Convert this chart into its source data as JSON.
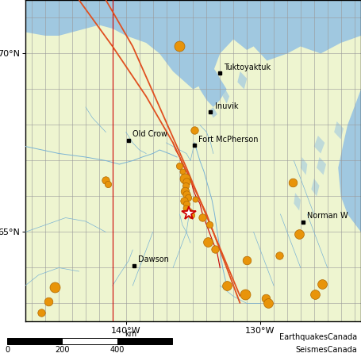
{
  "bg_land": "#eef5d0",
  "bg_water_outer": "#b8d8ea",
  "bg_water_sea": "#a0c8e0",
  "lon_min": -147.5,
  "lon_max": -122.5,
  "lat_min": 62.5,
  "lat_max": 71.5,
  "gridlines_color": "#999999",
  "gridlines_lw": 0.5,
  "river_color": "#7ab3d4",
  "fault_color1": "#e05020",
  "fault_color2": "#e05020",
  "border_color": "#cc0000",
  "eq_color": "#e8940a",
  "eq_edge": "#b06800",
  "star_edge": "#cc0000",
  "label_fontsize": 7,
  "cities": [
    {
      "name": "Tuktoyaktuk",
      "lon": -133.0,
      "lat": 69.45
    },
    {
      "name": "Inuvik",
      "lon": -133.7,
      "lat": 68.36
    },
    {
      "name": "Old Crow",
      "lon": -139.8,
      "lat": 67.57
    },
    {
      "name": "Fort McPherson",
      "lon": -134.9,
      "lat": 67.43
    },
    {
      "name": "Dawson",
      "lon": -139.4,
      "lat": 64.06
    },
    {
      "name": "Norman W",
      "lon": -126.8,
      "lat": 65.28
    }
  ],
  "earthquakes": [
    {
      "lon": -136.0,
      "lat": 70.2,
      "size": 11
    },
    {
      "lon": -134.9,
      "lat": 67.85,
      "size": 8
    },
    {
      "lon": -136.0,
      "lat": 66.85,
      "size": 7
    },
    {
      "lon": -135.8,
      "lat": 66.7,
      "size": 6
    },
    {
      "lon": -135.6,
      "lat": 66.5,
      "size": 11
    },
    {
      "lon": -135.5,
      "lat": 66.4,
      "size": 8
    },
    {
      "lon": -135.55,
      "lat": 66.3,
      "size": 7
    },
    {
      "lon": -135.6,
      "lat": 66.15,
      "size": 9
    },
    {
      "lon": -135.5,
      "lat": 66.05,
      "size": 8
    },
    {
      "lon": -135.4,
      "lat": 65.97,
      "size": 7
    },
    {
      "lon": -135.65,
      "lat": 65.88,
      "size": 8
    },
    {
      "lon": -135.5,
      "lat": 65.78,
      "size": 7
    },
    {
      "lon": -135.55,
      "lat": 65.67,
      "size": 6
    },
    {
      "lon": -135.3,
      "lat": 65.57,
      "size": 8
    },
    {
      "lon": -135.15,
      "lat": 65.48,
      "size": 7
    },
    {
      "lon": -134.85,
      "lat": 65.92,
      "size": 6
    },
    {
      "lon": -134.3,
      "lat": 65.42,
      "size": 8
    },
    {
      "lon": -133.8,
      "lat": 65.22,
      "size": 7
    },
    {
      "lon": -133.9,
      "lat": 64.72,
      "size": 10
    },
    {
      "lon": -133.4,
      "lat": 64.52,
      "size": 8
    },
    {
      "lon": -141.5,
      "lat": 66.45,
      "size": 8
    },
    {
      "lon": -141.35,
      "lat": 66.35,
      "size": 7
    },
    {
      "lon": -127.6,
      "lat": 66.38,
      "size": 9
    },
    {
      "lon": -127.1,
      "lat": 64.95,
      "size": 10
    },
    {
      "lon": -128.6,
      "lat": 64.35,
      "size": 8
    },
    {
      "lon": -131.0,
      "lat": 64.22,
      "size": 9
    },
    {
      "lon": -132.5,
      "lat": 63.5,
      "size": 10
    },
    {
      "lon": -131.1,
      "lat": 63.25,
      "size": 11
    },
    {
      "lon": -129.6,
      "lat": 63.15,
      "size": 9
    },
    {
      "lon": -129.4,
      "lat": 63.0,
      "size": 10
    },
    {
      "lon": -145.3,
      "lat": 63.45,
      "size": 11
    },
    {
      "lon": -145.8,
      "lat": 63.05,
      "size": 9
    },
    {
      "lon": -146.3,
      "lat": 62.75,
      "size": 8
    },
    {
      "lon": -125.4,
      "lat": 63.55,
      "size": 10
    },
    {
      "lon": -125.9,
      "lat": 63.25,
      "size": 10
    }
  ],
  "star": {
    "lon": -135.3,
    "lat": 65.52
  },
  "xticks": [
    -140,
    -130
  ],
  "yticks": [
    65,
    70
  ],
  "xlabel_labels": [
    "140°W",
    "130°W"
  ],
  "ylabel_labels": [
    "65°N",
    "70°N"
  ],
  "credit1": "EarthquakesCanada",
  "credit2": "SeismesCanada"
}
